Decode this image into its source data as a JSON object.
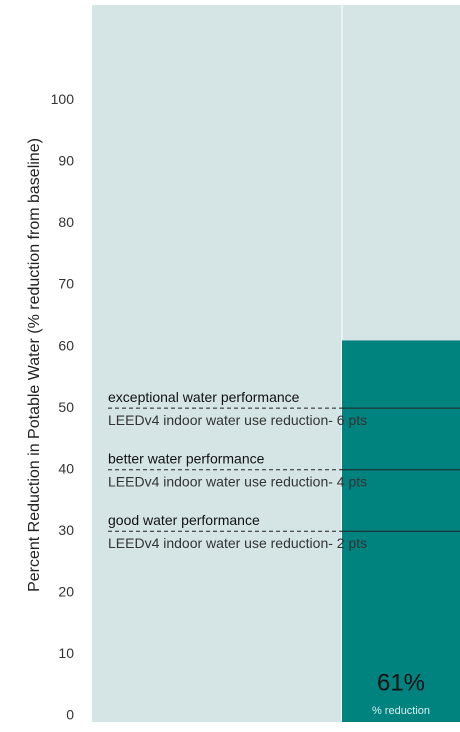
{
  "chart_data": {
    "type": "bar",
    "ylabel": "Percent Reduction in Potable Water (% reduction from baseline)",
    "categories": [
      null
    ],
    "values": [
      61
    ],
    "value_labels": [
      "61%"
    ],
    "value_sublabel": "% reduction",
    "color": "#00827f",
    "ylim": [
      0,
      115
    ],
    "yticks": [
      0,
      10,
      20,
      30,
      40,
      50,
      60,
      70,
      80,
      90,
      100
    ],
    "thresholds": [
      {
        "value": 50,
        "title": "exceptional water performance",
        "subtitle": "LEEDv4 indoor water use reduction- 6 pts"
      },
      {
        "value": 40,
        "title": "better water performance",
        "subtitle": "LEEDv4 indoor water use reduction- 4 pts"
      },
      {
        "value": 30,
        "title": "good water performance",
        "subtitle": "LEEDv4 indoor water use reduction- 2 pts"
      }
    ]
  }
}
